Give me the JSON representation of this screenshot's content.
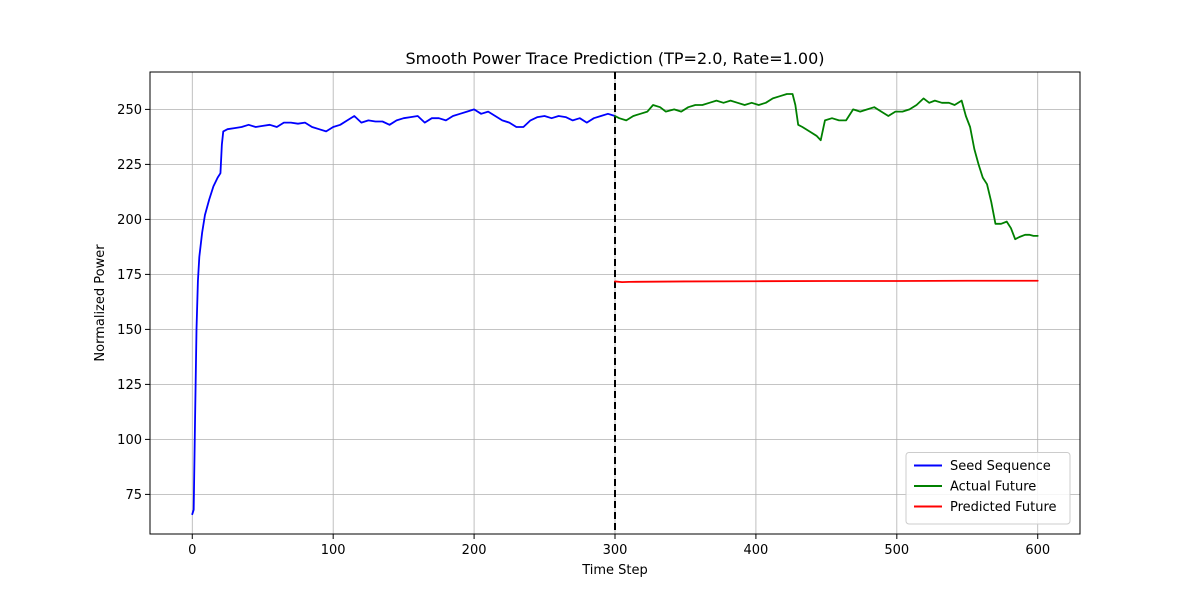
{
  "chart_data": {
    "type": "line",
    "title": "Smooth Power Trace Prediction (TP=2.0, Rate=1.00)",
    "xlabel": "Time Step",
    "ylabel": "Normalized Power",
    "xlim": [
      -30,
      630
    ],
    "ylim": [
      57,
      267
    ],
    "x_ticks": [
      0,
      100,
      200,
      300,
      400,
      500,
      600
    ],
    "y_ticks": [
      75,
      100,
      125,
      150,
      175,
      200,
      225,
      250
    ],
    "grid": true,
    "legend_position": "lower-right",
    "split_marker": {
      "x": 300,
      "style": "dashed",
      "color": "#000000"
    },
    "series": [
      {
        "name": "Seed Sequence",
        "color": "#0000ff",
        "points": [
          [
            0,
            66
          ],
          [
            1,
            68
          ],
          [
            2,
            110
          ],
          [
            3,
            150
          ],
          [
            4,
            172
          ],
          [
            5,
            183
          ],
          [
            7,
            194
          ],
          [
            9,
            202
          ],
          [
            12,
            209
          ],
          [
            15,
            215
          ],
          [
            18,
            219
          ],
          [
            20,
            221
          ],
          [
            21,
            234
          ],
          [
            22,
            240
          ],
          [
            25,
            241
          ],
          [
            30,
            241.5
          ],
          [
            35,
            242
          ],
          [
            40,
            243
          ],
          [
            45,
            242
          ],
          [
            50,
            242.5
          ],
          [
            55,
            243
          ],
          [
            60,
            242
          ],
          [
            65,
            244
          ],
          [
            70,
            244
          ],
          [
            75,
            243.5
          ],
          [
            80,
            244
          ],
          [
            85,
            242
          ],
          [
            90,
            241
          ],
          [
            95,
            240
          ],
          [
            100,
            242
          ],
          [
            105,
            243
          ],
          [
            110,
            245
          ],
          [
            115,
            247
          ],
          [
            120,
            244
          ],
          [
            125,
            245
          ],
          [
            130,
            244.5
          ],
          [
            135,
            244.5
          ],
          [
            140,
            243
          ],
          [
            145,
            245
          ],
          [
            150,
            246
          ],
          [
            155,
            246.5
          ],
          [
            160,
            247
          ],
          [
            165,
            244
          ],
          [
            170,
            246
          ],
          [
            175,
            246
          ],
          [
            180,
            245
          ],
          [
            185,
            247
          ],
          [
            190,
            248
          ],
          [
            195,
            249
          ],
          [
            200,
            250
          ],
          [
            205,
            248
          ],
          [
            210,
            249
          ],
          [
            215,
            247
          ],
          [
            220,
            245
          ],
          [
            225,
            244
          ],
          [
            230,
            242
          ],
          [
            235,
            242
          ],
          [
            240,
            245
          ],
          [
            245,
            246.5
          ],
          [
            250,
            247
          ],
          [
            255,
            246
          ],
          [
            260,
            247
          ],
          [
            265,
            246.5
          ],
          [
            270,
            245
          ],
          [
            275,
            246
          ],
          [
            280,
            244
          ],
          [
            285,
            246
          ],
          [
            290,
            247
          ],
          [
            295,
            248
          ],
          [
            300,
            247
          ]
        ]
      },
      {
        "name": "Actual Future",
        "color": "#008000",
        "points": [
          [
            300,
            247
          ],
          [
            303,
            246
          ],
          [
            308,
            245
          ],
          [
            313,
            247
          ],
          [
            318,
            248
          ],
          [
            323,
            249
          ],
          [
            327,
            252
          ],
          [
            332,
            251
          ],
          [
            336,
            249
          ],
          [
            342,
            250
          ],
          [
            347,
            249
          ],
          [
            352,
            251
          ],
          [
            357,
            252
          ],
          [
            362,
            252
          ],
          [
            367,
            253
          ],
          [
            372,
            254
          ],
          [
            377,
            253
          ],
          [
            382,
            254
          ],
          [
            387,
            253
          ],
          [
            392,
            252
          ],
          [
            397,
            253
          ],
          [
            402,
            252
          ],
          [
            407,
            253
          ],
          [
            412,
            255
          ],
          [
            417,
            256
          ],
          [
            422,
            257
          ],
          [
            426,
            257
          ],
          [
            428,
            252
          ],
          [
            430,
            243
          ],
          [
            433,
            242
          ],
          [
            438,
            240
          ],
          [
            443,
            238
          ],
          [
            446,
            236
          ],
          [
            449,
            245
          ],
          [
            454,
            246
          ],
          [
            459,
            245
          ],
          [
            464,
            245
          ],
          [
            469,
            250
          ],
          [
            474,
            249
          ],
          [
            479,
            250
          ],
          [
            484,
            251
          ],
          [
            489,
            249
          ],
          [
            494,
            247
          ],
          [
            499,
            249
          ],
          [
            504,
            249
          ],
          [
            509,
            250
          ],
          [
            514,
            252
          ],
          [
            519,
            255
          ],
          [
            523,
            253
          ],
          [
            527,
            254
          ],
          [
            532,
            253
          ],
          [
            537,
            253
          ],
          [
            541,
            252
          ],
          [
            546,
            254
          ],
          [
            549,
            247
          ],
          [
            552,
            242
          ],
          [
            555,
            232
          ],
          [
            558,
            225
          ],
          [
            561,
            219
          ],
          [
            564,
            216
          ],
          [
            567,
            208
          ],
          [
            570,
            198
          ],
          [
            574,
            198
          ],
          [
            578,
            199
          ],
          [
            581,
            196
          ],
          [
            584,
            191
          ],
          [
            587,
            192
          ],
          [
            591,
            193
          ],
          [
            594,
            193
          ],
          [
            597,
            192.5
          ],
          [
            600,
            192.5
          ]
        ]
      },
      {
        "name": "Predicted Future",
        "color": "#ff0000",
        "points": [
          [
            300,
            171.8
          ],
          [
            305,
            171.5
          ],
          [
            310,
            171.6
          ],
          [
            350,
            171.8
          ],
          [
            400,
            171.9
          ],
          [
            450,
            172
          ],
          [
            500,
            172
          ],
          [
            550,
            172.1
          ],
          [
            600,
            172.1
          ]
        ]
      }
    ]
  }
}
